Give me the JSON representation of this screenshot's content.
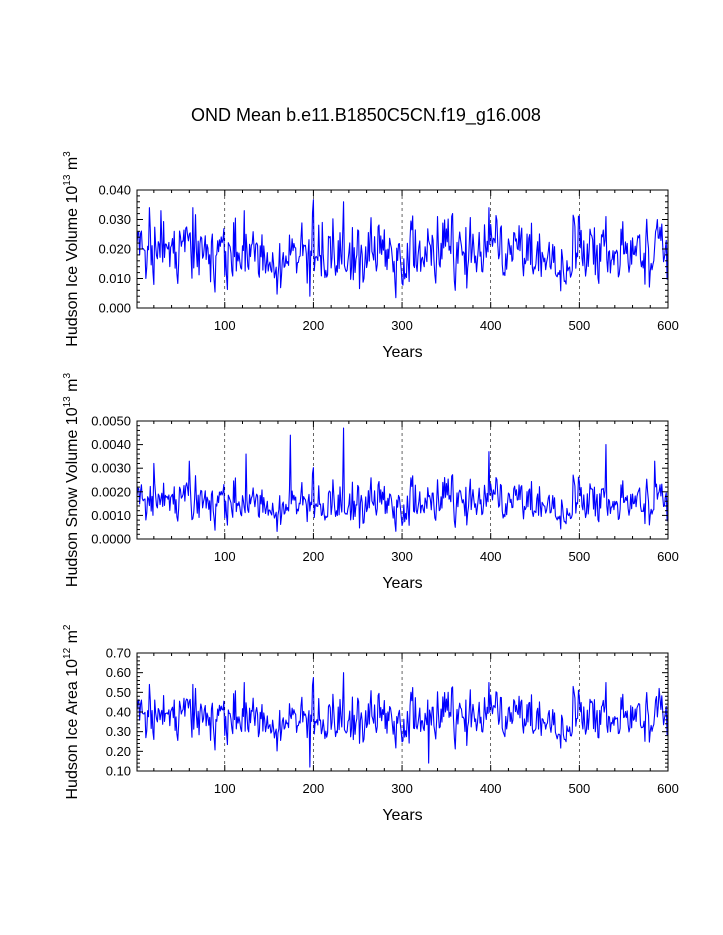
{
  "title": "OND Mean b.e11.B1850C5CN.f19_g16.008",
  "series_color": "#0000ff",
  "chart_data": [
    {
      "type": "line",
      "title": "OND Mean b.e11.B1850C5CN.f19_g16.008",
      "xlabel": "Years",
      "ylabel": "Hudson Ice Volume",
      "ylabel_unit": "10",
      "ylabel_unit_exp": "13",
      "ylabel_unit_tail": " m",
      "ylabel_unit_tail_exp": "3",
      "xlim": [
        1,
        600
      ],
      "ylim": [
        0.0,
        0.04
      ],
      "xticks": [
        100,
        200,
        300,
        400,
        500,
        600
      ],
      "xtick_labels": [
        "100",
        "200",
        "300",
        "400",
        "500",
        "600"
      ],
      "yticks": [
        0.0,
        0.01,
        0.02,
        0.03,
        0.04
      ],
      "ytick_labels": [
        "0.000",
        "0.010",
        "0.020",
        "0.030",
        "0.040"
      ],
      "grid_x": [
        100,
        200,
        300,
        400,
        500
      ],
      "mean": 0.0185,
      "amp": 0.0052,
      "peaks": [
        [
          15,
          0.034
        ],
        [
          28,
          0.033
        ],
        [
          64,
          0.034
        ],
        [
          122,
          0.033
        ],
        [
          196,
          0.004
        ],
        [
          210,
          0.029
        ],
        [
          234,
          0.036
        ],
        [
          398,
          0.034
        ],
        [
          500,
          0.031
        ],
        [
          530,
          0.031
        ],
        [
          588,
          0.03
        ]
      ]
    },
    {
      "type": "line",
      "xlabel": "Years",
      "ylabel": "Hudson Snow Volume",
      "ylabel_unit": "10",
      "ylabel_unit_exp": "13",
      "ylabel_unit_tail": " m",
      "ylabel_unit_tail_exp": "3",
      "xlim": [
        1,
        600
      ],
      "ylim": [
        0.0,
        0.005
      ],
      "xticks": [
        100,
        200,
        300,
        400,
        500,
        600
      ],
      "xtick_labels": [
        "100",
        "200",
        "300",
        "400",
        "500",
        "600"
      ],
      "yticks": [
        0.0,
        0.001,
        0.002,
        0.003,
        0.004,
        0.005
      ],
      "ytick_labels": [
        "0.0000",
        "0.0010",
        "0.0020",
        "0.0030",
        "0.0040",
        "0.0050"
      ],
      "grid_x": [
        100,
        200,
        300,
        400,
        500
      ],
      "mean": 0.00155,
      "amp": 0.00045,
      "peaks": [
        [
          20,
          0.0032
        ],
        [
          60,
          0.0033
        ],
        [
          124,
          0.0036
        ],
        [
          174,
          0.0044
        ],
        [
          234,
          0.0047
        ],
        [
          398,
          0.0037
        ],
        [
          530,
          0.004
        ],
        [
          585,
          0.0033
        ]
      ]
    },
    {
      "type": "line",
      "xlabel": "Years",
      "ylabel": "Hudson Ice Area",
      "ylabel_unit": "10",
      "ylabel_unit_exp": "12",
      "ylabel_unit_tail": " m",
      "ylabel_unit_tail_exp": "2",
      "xlim": [
        1,
        600
      ],
      "ylim": [
        0.1,
        0.7
      ],
      "xticks": [
        100,
        200,
        300,
        400,
        500,
        600
      ],
      "xtick_labels": [
        "100",
        "200",
        "300",
        "400",
        "500",
        "600"
      ],
      "yticks": [
        0.1,
        0.2,
        0.3,
        0.4,
        0.5,
        0.6,
        0.7
      ],
      "ytick_labels": [
        "0.10",
        "0.20",
        "0.30",
        "0.40",
        "0.50",
        "0.60",
        "0.70"
      ],
      "grid_x": [
        100,
        200,
        300,
        400,
        500
      ],
      "mean": 0.37,
      "amp": 0.06,
      "peaks": [
        [
          15,
          0.54
        ],
        [
          64,
          0.54
        ],
        [
          122,
          0.55
        ],
        [
          196,
          0.12
        ],
        [
          234,
          0.6
        ],
        [
          330,
          0.14
        ],
        [
          398,
          0.55
        ],
        [
          530,
          0.55
        ],
        [
          590,
          0.52
        ]
      ]
    }
  ]
}
